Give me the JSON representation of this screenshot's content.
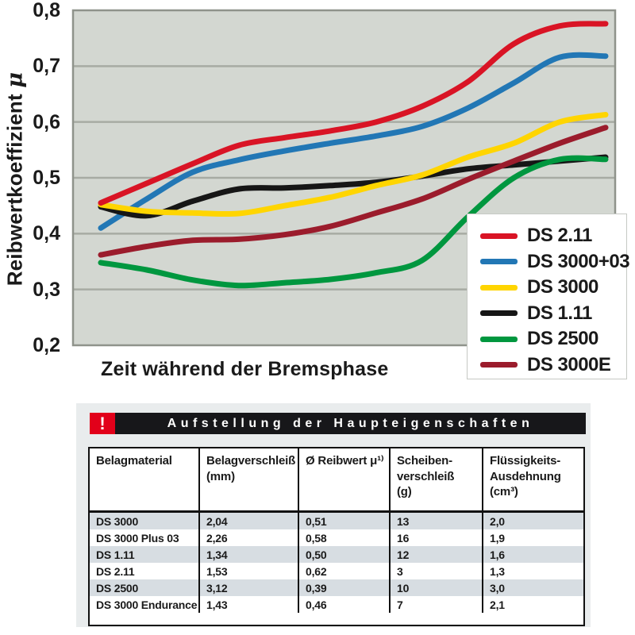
{
  "colors": {
    "plot_background": "#d3d7d1",
    "plot_border": "#8f938b",
    "gridline": "#a7aba3",
    "legend_border": "#c6c9c4",
    "title_bar_black": "#17171a",
    "warning_red": "#e2001a",
    "row_shade": "#d7dde2",
    "text": "#1a1a1a"
  },
  "chart": {
    "ylabel_main": "Reibwertkoeffizient",
    "ylabel_symbol": "μ",
    "y_tick_labels": [
      "0,8",
      "0,7",
      "0,6",
      "0,5",
      "0,4",
      "0,3",
      "0,2"
    ]
  },
  "chart_data": {
    "type": "line",
    "title": "",
    "xlabel": "Zeit während der Bremsphase",
    "ylabel": "Reibwertkoeffizient μ",
    "ylim": [
      0.2,
      0.8
    ],
    "y_ticks": [
      0.8,
      0.7,
      0.6,
      0.5,
      0.4,
      0.3,
      0.2
    ],
    "x_index": [
      0,
      1,
      2,
      3,
      4,
      5,
      6,
      7,
      8,
      9,
      10,
      11
    ],
    "x_axis_note": "no tick labels shown",
    "grid": "horizontal",
    "legend_position": "overlay-right",
    "series": [
      {
        "name": "DS 2.11",
        "color": "#d91425",
        "values": [
          0.455,
          0.49,
          0.525,
          0.558,
          0.572,
          0.584,
          0.6,
          0.628,
          0.672,
          0.74,
          0.772,
          0.776
        ]
      },
      {
        "name": "DS 3000+03",
        "color": "#2277b5",
        "values": [
          0.41,
          0.462,
          0.51,
          0.532,
          0.548,
          0.562,
          0.575,
          0.592,
          0.625,
          0.67,
          0.716,
          0.718
        ]
      },
      {
        "name": "DS 3000",
        "color": "#ffd500",
        "values": [
          0.452,
          0.44,
          0.437,
          0.436,
          0.45,
          0.465,
          0.486,
          0.505,
          0.537,
          0.562,
          0.6,
          0.613
        ]
      },
      {
        "name": "DS 1.11",
        "color": "#161616",
        "values": [
          0.448,
          0.432,
          0.458,
          0.48,
          0.482,
          0.486,
          0.492,
          0.503,
          0.516,
          0.523,
          0.53,
          0.537
        ]
      },
      {
        "name": "DS 2500",
        "color": "#00973f",
        "values": [
          0.348,
          0.335,
          0.317,
          0.307,
          0.312,
          0.318,
          0.33,
          0.352,
          0.43,
          0.5,
          0.533,
          0.533
        ]
      },
      {
        "name": "DS 3000E",
        "color": "#9b1c2c",
        "values": [
          0.362,
          0.377,
          0.388,
          0.39,
          0.398,
          0.413,
          0.437,
          0.462,
          0.497,
          0.53,
          0.562,
          0.59
        ]
      }
    ]
  },
  "table": {
    "title": "Aufstellung der Haupteigenschaften",
    "warning_symbol": "!",
    "columns": [
      {
        "lines": [
          "Belagmaterial"
        ]
      },
      {
        "lines": [
          "Belagverschleiß",
          "(mm)"
        ]
      },
      {
        "lines": [
          "Ø Reibwert μ¹⁾"
        ]
      },
      {
        "lines": [
          "Scheiben-",
          "verschleiß",
          "(g)"
        ]
      },
      {
        "lines": [
          "Flüssigkeits-",
          "Ausdehnung",
          "(cm³)"
        ]
      }
    ],
    "rows": [
      [
        "DS 3000",
        "2,04",
        "0,51",
        "13",
        "2,0"
      ],
      [
        "DS 3000 Plus 03",
        "2,26",
        "0,58",
        "16",
        "1,9"
      ],
      [
        "DS 1.11",
        "1,34",
        "0,50",
        "12",
        "1,6"
      ],
      [
        "DS 2.11",
        "1,53",
        "0,62",
        "3",
        "1,3"
      ],
      [
        "DS 2500",
        "3,12",
        "0,39",
        "10",
        "3,0"
      ],
      [
        "DS 3000 Endurance",
        "1,43",
        "0,46",
        "7",
        "2,1"
      ]
    ]
  }
}
